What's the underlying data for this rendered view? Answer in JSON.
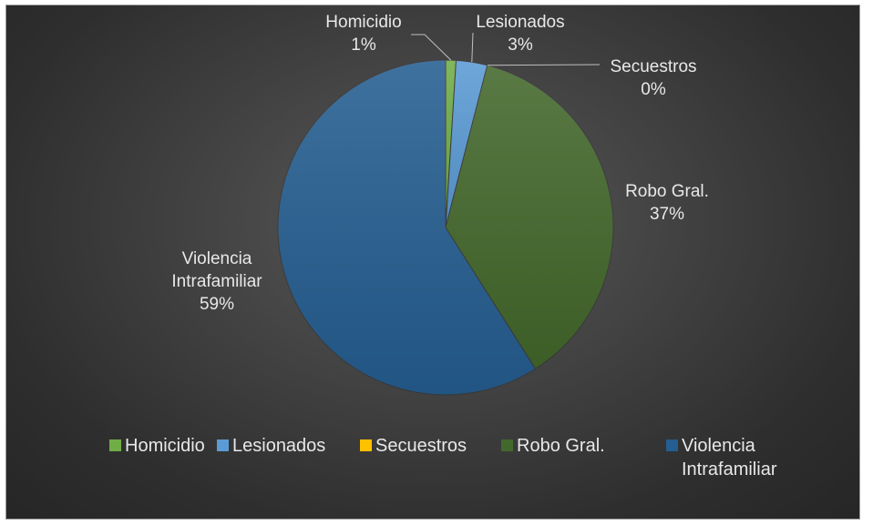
{
  "chart_data": {
    "type": "pie",
    "title": "",
    "series": [
      {
        "name": "Homicidio",
        "value": 1,
        "label": [
          "Homicidio",
          "1%"
        ],
        "color": "#70ad47"
      },
      {
        "name": "Lesionados",
        "value": 3,
        "label": [
          "Lesionados",
          "3%"
        ],
        "color": "#5b9bd5"
      },
      {
        "name": "Secuestros",
        "value": 0,
        "label": [
          "Secuestros",
          "0%"
        ],
        "color": "#ffc000"
      },
      {
        "name": "Robo Gral.",
        "value": 37,
        "label": [
          "Robo Gral.",
          "37%"
        ],
        "color": "#43682b"
      },
      {
        "name": "Violencia Intrafamiliar",
        "value": 59,
        "label": [
          "Violencia",
          "Intrafamiliar",
          "59%"
        ],
        "color": "#255e91"
      }
    ],
    "legend": {
      "position": "bottom",
      "entries": [
        {
          "name": "Homicidio",
          "color": "#70ad47",
          "lines": [
            "Homicidio"
          ]
        },
        {
          "name": "Lesionados",
          "color": "#5b9bd5",
          "lines": [
            "Lesionados"
          ]
        },
        {
          "name": "Secuestros",
          "color": "#ffc000",
          "lines": [
            "Secuestros"
          ]
        },
        {
          "name": "Robo Gral.",
          "color": "#43682b",
          "lines": [
            "Robo Gral."
          ]
        },
        {
          "name": "Violencia Intrafamiliar",
          "color": "#255e91",
          "lines": [
            "Violencia",
            "Intrafamiliar"
          ]
        }
      ]
    }
  }
}
